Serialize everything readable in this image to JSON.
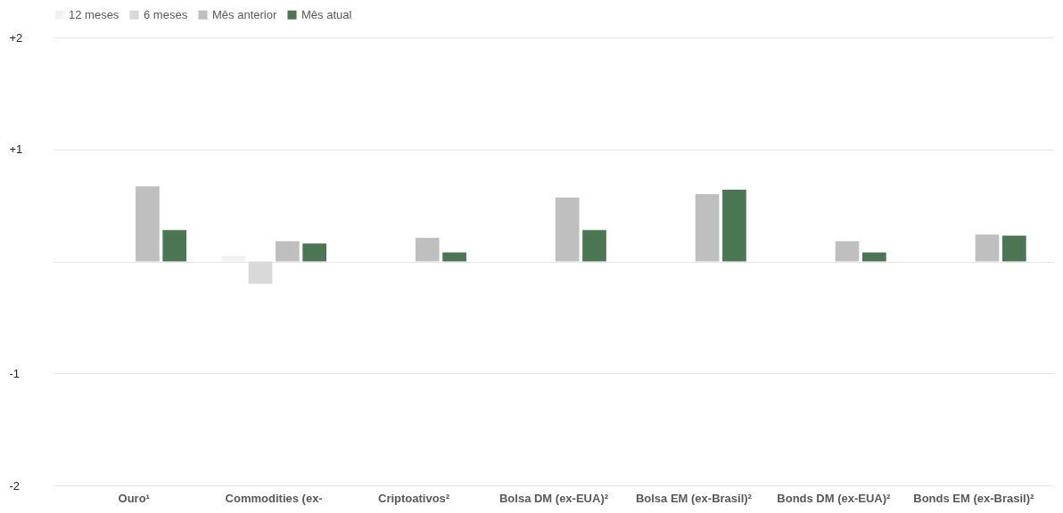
{
  "chart_data": {
    "type": "bar",
    "categories": [
      "Ouro¹",
      "Commodities (ex-",
      "Criptoativos²",
      "Bolsa DM (ex-EUA)²",
      "Bolsa EM (ex-Brasil)²",
      "Bonds DM (ex-EUA)²",
      "Bonds EM (ex-Brasil)²"
    ],
    "series": [
      {
        "name": "12 meses",
        "color": "#f2f2f2",
        "values": [
          null,
          0.05,
          null,
          null,
          null,
          null,
          null
        ]
      },
      {
        "name": "6 meses",
        "color": "#d9d9d9",
        "values": [
          null,
          -0.2,
          null,
          null,
          null,
          null,
          null
        ]
      },
      {
        "name": "Mês anterior",
        "color": "#bfbfbf",
        "values": [
          0.67,
          0.18,
          0.21,
          0.57,
          0.6,
          0.18,
          0.24
        ]
      },
      {
        "name": "Mês atual",
        "color": "#4a7653",
        "values": [
          0.28,
          0.16,
          0.08,
          0.28,
          0.64,
          0.08,
          0.23
        ]
      }
    ],
    "ylim": [
      -2,
      2
    ],
    "yticks": [
      {
        "value": -2,
        "label": "-2"
      },
      {
        "value": -1,
        "label": "-1"
      },
      {
        "value": 0,
        "label": null
      },
      {
        "value": 1,
        "label": "+1"
      },
      {
        "value": 2,
        "label": "+2"
      }
    ],
    "grid": "y",
    "legend": "top"
  }
}
